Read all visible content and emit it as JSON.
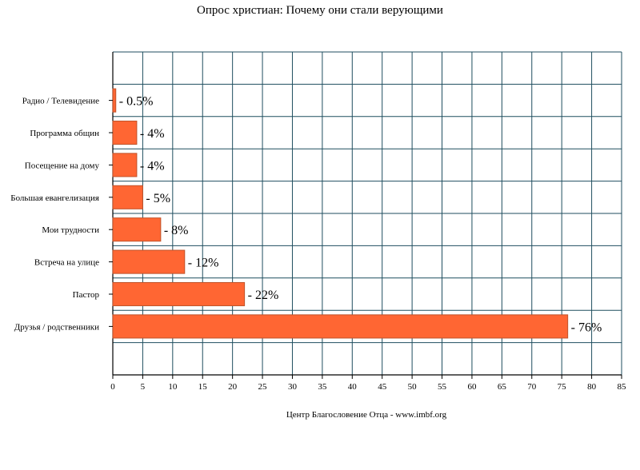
{
  "chart_data": {
    "type": "bar",
    "orientation": "horizontal",
    "title": "Опрос христиан: Почему они стали верующими",
    "xlabel": "Центр Благословение Отца - www.imbf.org",
    "ylabel": "",
    "categories": [
      "Радио / Телевидение",
      "Программа общин",
      "Посещение на дому",
      "Большая евангелизация",
      "Мои трудности",
      "Встреча на улице",
      "Пастор",
      "Друзья / родственники"
    ],
    "values": [
      0.5,
      4,
      4,
      5,
      8,
      12,
      22,
      76
    ],
    "data_labels": [
      "- 0.5%",
      "- 4%",
      "- 4%",
      "- 5%",
      "- 8%",
      "- 12%",
      "- 22%",
      "- 76%"
    ],
    "xlim": [
      0,
      85
    ],
    "xticks": [
      "0",
      "5",
      "10",
      "15",
      "20",
      "25",
      "30",
      "35",
      "40",
      "45",
      "50",
      "55",
      "60",
      "65",
      "70",
      "75",
      "80",
      "85"
    ],
    "grid": true,
    "legend": "none",
    "colors": {
      "bar": "#ff6633",
      "bar_stroke": "#c0532a",
      "grid": "#1f4e5f",
      "axis": "#000000"
    }
  }
}
